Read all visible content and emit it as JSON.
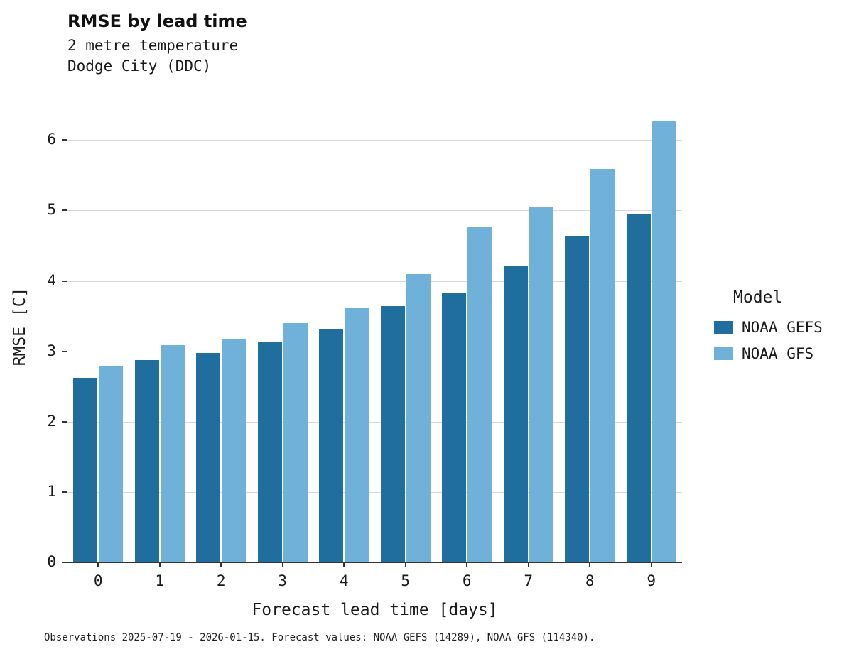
{
  "chart_data": {
    "type": "bar",
    "title": "RMSE by lead time",
    "subtitle_lines": [
      "2 metre temperature",
      "Dodge City (DDC)"
    ],
    "xlabel": "Forecast lead time [days]",
    "ylabel": "RMSE [C]",
    "categories": [
      "0",
      "1",
      "2",
      "3",
      "4",
      "5",
      "6",
      "7",
      "8",
      "9"
    ],
    "series": [
      {
        "name": "NOAA GEFS",
        "color": "#1f6e9e",
        "values": [
          2.61,
          2.88,
          2.98,
          3.14,
          3.32,
          3.64,
          3.83,
          4.21,
          4.63,
          4.94
        ]
      },
      {
        "name": "NOAA GFS",
        "color": "#6fb1d9",
        "values": [
          2.78,
          3.09,
          3.18,
          3.4,
          3.61,
          4.1,
          4.77,
          5.05,
          5.59,
          6.28
        ]
      }
    ],
    "ylim": [
      0,
      6.7
    ],
    "yticks": [
      0,
      1,
      2,
      3,
      4,
      5,
      6
    ],
    "grid": "horizontal-major",
    "legend": {
      "title": "Model",
      "position": "right"
    },
    "caption": "Observations 2025-07-19 - 2026-01-15. Forecast values: NOAA GEFS (14289), NOAA GFS (114340)."
  }
}
